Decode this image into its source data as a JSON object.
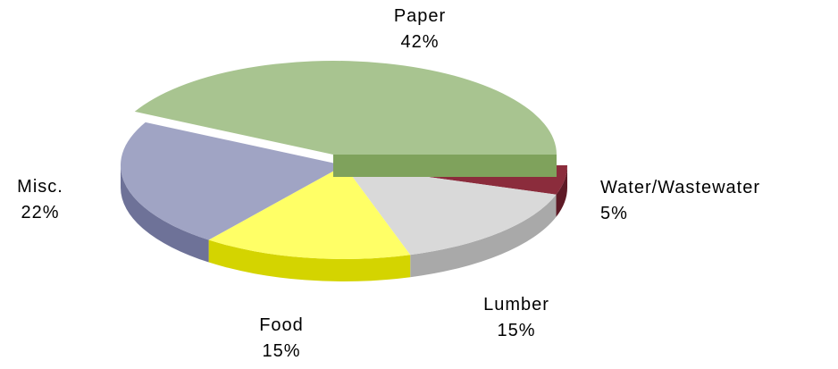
{
  "chart_data": {
    "type": "pie",
    "categories": [
      "Water/Wastewater",
      "Lumber",
      "Food",
      "Misc.",
      "Paper"
    ],
    "values": [
      5,
      15,
      15,
      22,
      42
    ],
    "value_labels": [
      "5%",
      "15%",
      "15%",
      "22%",
      "42%"
    ],
    "colors": [
      "#8b2c3c",
      "#d9d9d9",
      "#ffff66",
      "#a0a4c4",
      "#a8c490"
    ],
    "side_colors": [
      "#5e1a26",
      "#a9a9a9",
      "#d4d400",
      "#6e7298",
      "#7fa25c"
    ]
  }
}
